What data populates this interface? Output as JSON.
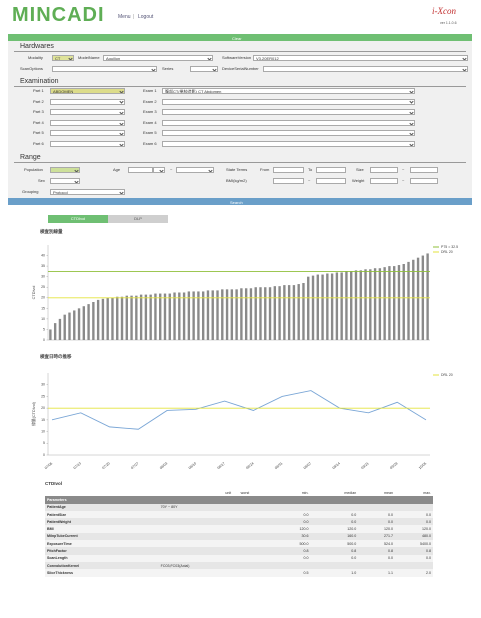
{
  "header": {
    "logo": "MINCADI",
    "nav": [
      "Menu",
      "Logout"
    ],
    "brand": "i-Xcon",
    "version": "ver 1.1.0.6"
  },
  "buttons": {
    "clear": "Clear",
    "search": "Search"
  },
  "hardwares": {
    "title": "Hardwares",
    "fields": [
      {
        "label": "Modality",
        "value": "CT"
      },
      {
        "label": "ModelName",
        "value": "Aquilion"
      },
      {
        "label": "SoftwareVersion",
        "value": "V3.20ER012"
      },
      {
        "label": "ScanOptions"
      },
      {
        "label": "Series"
      },
      {
        "label": "DeviceSerialNumber"
      }
    ]
  },
  "examination": {
    "title": "Examination",
    "rows": [
      {
        "part": "Part 1",
        "part_value": "ABDOMEN",
        "exam": "Exam 1",
        "exam_value": "腹部CT(単純造影) CT Abdomen"
      },
      {
        "part": "Part 2",
        "exam": "Exam 2"
      },
      {
        "part": "Part 3",
        "exam": "Exam 3"
      },
      {
        "part": "Part 4",
        "exam": "Exam 4"
      },
      {
        "part": "Part 5",
        "exam": "Exam 5"
      },
      {
        "part": "Part 6",
        "exam": "Exam 6"
      }
    ]
  },
  "range": {
    "title": "Range",
    "population": "Population",
    "age": "Age",
    "separator": "~",
    "state_terms": "State Terms",
    "from": "From",
    "to": "To",
    "size": "Size",
    "sex": "Sex",
    "bmi": "BMI(kg/m2)",
    "weight": "Weight",
    "grouping": "Grouping",
    "grouping_value": "Protocol"
  },
  "tabs": [
    "CTDIvol",
    "DLP"
  ],
  "chart_data": [
    {
      "type": "bar",
      "title": "検査別線量",
      "y_label": "CTDIvol",
      "color": "#8a8a8a",
      "values": [
        5,
        8,
        10,
        12,
        13,
        14,
        15,
        16,
        17,
        18,
        19,
        19.5,
        20,
        20,
        20.5,
        20.5,
        21,
        21,
        21,
        21.5,
        21.5,
        21.5,
        22,
        22,
        22,
        22,
        22.5,
        22.5,
        22.5,
        23,
        23,
        23,
        23,
        23.5,
        23.5,
        23.5,
        24,
        24,
        24,
        24,
        24.5,
        24.5,
        24.5,
        25,
        25,
        25,
        25,
        25.5,
        25.5,
        26,
        26,
        26,
        26.5,
        27,
        30,
        30.5,
        31,
        31,
        31.5,
        31.5,
        32,
        32,
        32.5,
        32.5,
        33,
        33,
        33.5,
        33.5,
        34,
        34,
        34.5,
        35,
        35,
        35.5,
        36,
        37,
        38,
        39,
        40,
        41
      ],
      "ylim": [
        0,
        45
      ],
      "yticks": [
        0,
        5,
        10,
        15,
        20,
        25,
        30,
        35,
        40
      ],
      "reference_lines": [
        {
          "name": "P75 = 32.5",
          "value": 32.5,
          "color": "#8fbf3a"
        },
        {
          "name": "DRL 20",
          "value": 20,
          "color": "#e3e33c"
        }
      ]
    },
    {
      "type": "line",
      "title": "検査日時の推移",
      "y_label": "線量(CTDIvol)",
      "color": "#7aa6d6",
      "categories": [
        "07/06",
        "07/13",
        "07/20",
        "07/27",
        "08/03",
        "08/10",
        "08/17",
        "08/24",
        "08/31",
        "09/07",
        "09/14",
        "09/21",
        "09/28",
        "10/05"
      ],
      "values": [
        15,
        18,
        12,
        11,
        19,
        19.5,
        23,
        19,
        25,
        27.5,
        20,
        18,
        22.5,
        15
      ],
      "ylim": [
        0,
        35
      ],
      "yticks": [
        0,
        5,
        10,
        15,
        20,
        25,
        30
      ],
      "reference_lines": [
        {
          "name": "DRL 20",
          "value": 20,
          "color": "#e3e33c"
        }
      ]
    }
  ],
  "table": {
    "title": "CTDIvol",
    "columns": [
      "unit",
      "worst",
      "min.",
      "median",
      "mean",
      "max."
    ],
    "section": "Parameters",
    "rows": [
      {
        "name": "PatientAge",
        "text": "70Y ~ 80Y"
      },
      {
        "name": "PatientSize",
        "values": [
          "0.0",
          "0.0",
          "0.0",
          "0.0"
        ]
      },
      {
        "name": "PatientWeight",
        "values": [
          "0.0",
          "0.0",
          "0.0",
          "0.0"
        ]
      },
      {
        "name": "BMI",
        "values": [
          "120.0",
          "120.0",
          "120.0",
          "120.0"
        ]
      },
      {
        "name": "MilnpTubeCurrent",
        "values": [
          "30.6",
          "160.0",
          "271.7",
          "480.0"
        ]
      },
      {
        "name": "ExposureTime",
        "values": [
          "500.0",
          "500.0",
          "524.0",
          "5400.0"
        ]
      },
      {
        "name": "PitchFactor",
        "values": [
          "0.8",
          "0.8",
          "0.8",
          "0.8"
        ]
      },
      {
        "name": "ScanLength",
        "values": [
          "0.0",
          "0.0",
          "0.0",
          "0.0"
        ]
      },
      {
        "name": "ConvolutionKernel",
        "text": "FC03;FC03(Axial)"
      },
      {
        "name": "SliceThickness",
        "values": [
          "0.5",
          "1.0",
          "1.1",
          "2.0"
        ]
      }
    ]
  }
}
